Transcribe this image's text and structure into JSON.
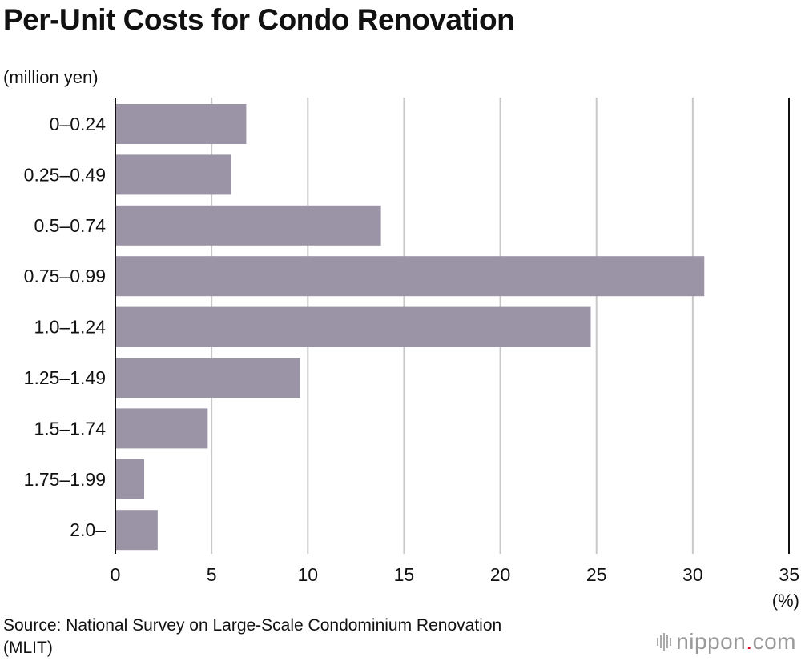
{
  "chart_data": {
    "type": "bar",
    "orientation": "horizontal",
    "title": "Per-Unit Costs for Condo Renovation",
    "ylabel": "(million yen)",
    "xlabel": "(%)",
    "categories": [
      "0–0.24",
      "0.25–0.49",
      "0.5–0.74",
      "0.75–0.99",
      "1.0–1.24",
      "1.25–1.49",
      "1.5–1.74",
      "1.75–1.99",
      "2.0–"
    ],
    "values": [
      6.8,
      6.0,
      13.8,
      30.6,
      24.7,
      9.6,
      4.8,
      1.5,
      2.2
    ],
    "xlim": [
      0,
      35
    ],
    "xticks": [
      0,
      5,
      10,
      15,
      20,
      25,
      30,
      35
    ],
    "grid": true,
    "bar_color": "#9a94a6"
  },
  "source": "Source: National Survey on Large-Scale Condominium Renovation (MLIT)",
  "logo": {
    "name": "nippon",
    "dot": ".",
    "suffix": "com"
  }
}
